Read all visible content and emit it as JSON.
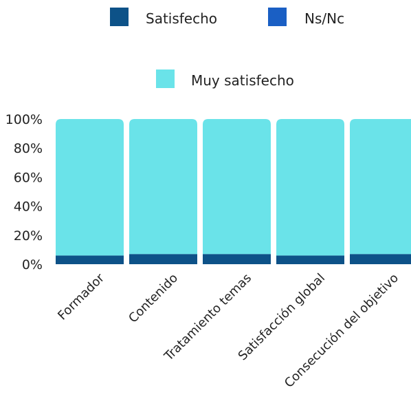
{
  "chart_data": {
    "type": "bar",
    "stacked": true,
    "percent": true,
    "categories": [
      "Formador",
      "Contenido",
      "Tratamiento temas",
      "Satisfacción global",
      "Consecución del objetivo"
    ],
    "series": [
      {
        "name": "Satisfecho",
        "color": "#0d5288",
        "values": [
          6,
          7,
          7,
          6,
          7
        ]
      },
      {
        "name": "Ns/Nc",
        "color": "#1a5fc4",
        "values": [
          0,
          0,
          0,
          0,
          0
        ]
      },
      {
        "name": "Muy satisfecho",
        "color": "#6ae3e9",
        "values": [
          94,
          93,
          93,
          94,
          93
        ]
      }
    ],
    "yticks": [
      "0%",
      "20%",
      "40%",
      "60%",
      "80%",
      "100%"
    ],
    "ylim": [
      0,
      100
    ],
    "legend": "top"
  }
}
